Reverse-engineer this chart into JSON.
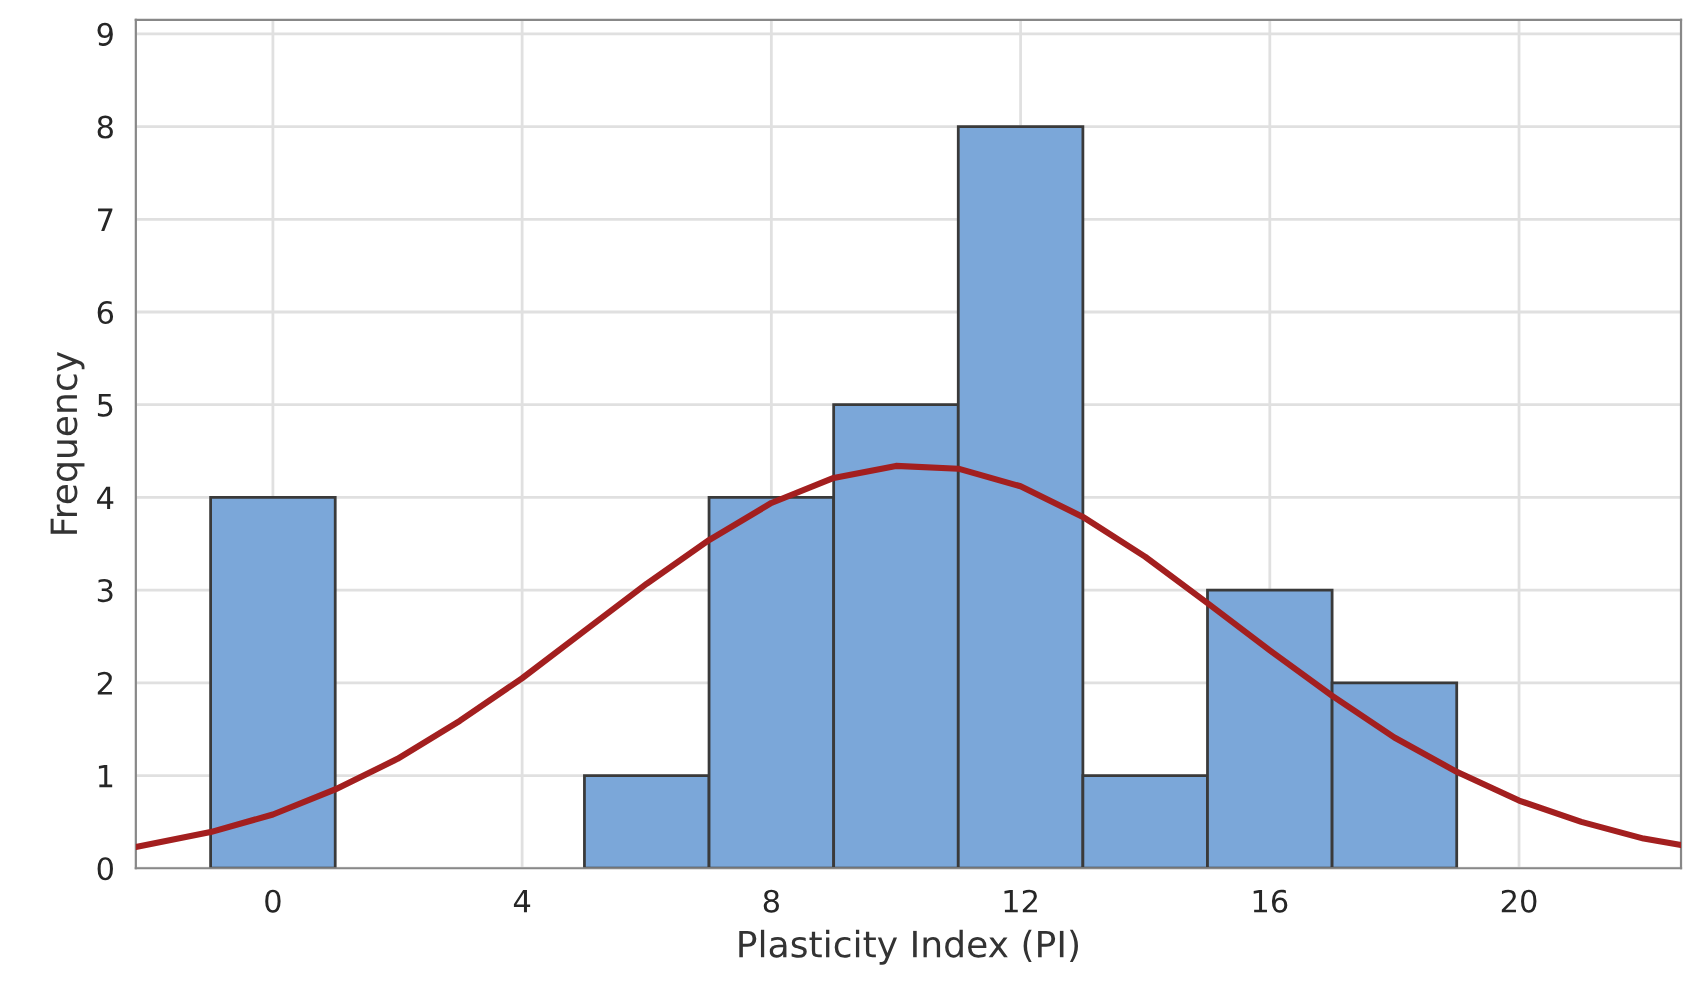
{
  "chart_data": {
    "type": "histogram",
    "xlabel": "Plasticity Index (PI)",
    "ylabel": "Frequency",
    "bins": [
      -1,
      1,
      3,
      5,
      7,
      9,
      11,
      13,
      15,
      17,
      19
    ],
    "values": [
      4,
      0,
      0,
      1,
      4,
      5,
      8,
      1,
      3,
      2
    ],
    "color": "#7ba7d9",
    "series": [
      {
        "type": "line",
        "color": "#a31f1f",
        "x": [
          -2.2,
          -1,
          0,
          1,
          2,
          3,
          4,
          5,
          6,
          7,
          8,
          9,
          10,
          11,
          12,
          13,
          14,
          15,
          16,
          17,
          18,
          19,
          20,
          21,
          22,
          22.6
        ],
        "values": [
          0.23,
          0.39,
          0.58,
          0.85,
          1.18,
          1.59,
          2.05,
          2.56,
          3.07,
          3.54,
          3.94,
          4.21,
          4.34,
          4.31,
          4.12,
          3.79,
          3.36,
          2.86,
          2.35,
          1.86,
          1.41,
          1.04,
          0.73,
          0.5,
          0.32,
          0.25
        ]
      }
    ],
    "xlim": [
      -2.2,
      22.6
    ],
    "xticks": [
      0,
      4,
      8,
      12,
      16,
      20
    ],
    "ylim": [
      0,
      9.15
    ],
    "yticks": [
      0,
      1,
      2,
      3,
      4,
      5,
      6,
      7,
      8,
      9
    ],
    "grid": true
  }
}
